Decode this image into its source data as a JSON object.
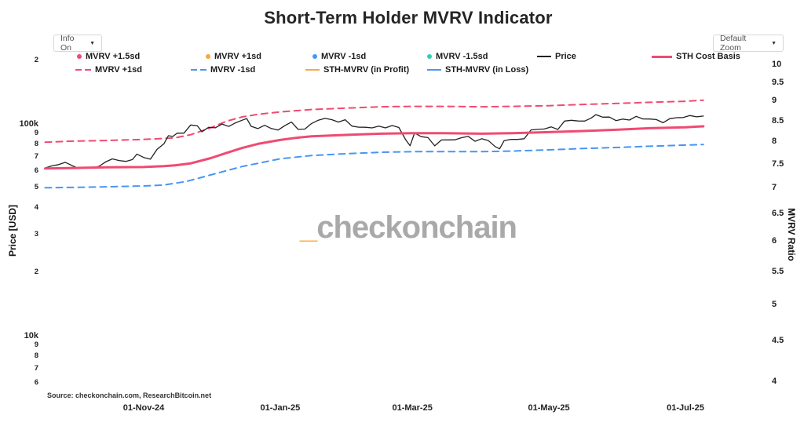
{
  "header": {
    "title": "Short-Term Holder MVRV Indicator"
  },
  "controls": {
    "info_dropdown": {
      "label": "Info On",
      "caret_icon": "chevron-down"
    },
    "zoom_dropdown": {
      "label": "Default Zoom",
      "caret_icon": "chevron-down"
    }
  },
  "colors": {
    "pink": "#f04a72",
    "blue": "#4796f5",
    "orange": "#f9a63f",
    "teal": "#2fd0b5",
    "black": "#212121",
    "watermark_gray": "#a9a9a9",
    "watermark_orange": "#fbaf3f"
  },
  "legend": {
    "rows": [
      [
        {
          "label": "MVRV +1.5sd",
          "marker": "dot",
          "color": "pink"
        },
        {
          "label": "MVRV +1sd",
          "marker": "dot",
          "color": "orange"
        },
        {
          "label": "MVRV -1sd",
          "marker": "dot",
          "color": "blue"
        },
        {
          "label": "MVRV -1.5sd",
          "marker": "dot",
          "color": "teal"
        },
        {
          "label": "Price",
          "marker": "line",
          "color": "black"
        },
        {
          "label": "STH Cost Basis",
          "marker": "thick",
          "color": "pink"
        }
      ],
      [
        {
          "label": "MVRV +1sd",
          "marker": "dashes",
          "color": "pink"
        },
        {
          "label": "MVRV -1sd",
          "marker": "dashes",
          "color": "blue"
        },
        {
          "label": "STH-MVRV (in Profit)",
          "marker": "line",
          "color": "orange"
        },
        {
          "label": "STH-MVRV (in Loss)",
          "marker": "line",
          "color": "blue"
        }
      ]
    ]
  },
  "watermark": {
    "underscore": "_",
    "text": "checkonchain"
  },
  "footer": {
    "source": "Source: checkonchain.com, ResearchBitcoin.net"
  },
  "chart_data": {
    "type": "line",
    "title": "Short-Term Holder MVRV Indicator",
    "units": "price in thousand USD (kUSD), log scales both axes, grid off, legend top horizontal",
    "x_axis": {
      "ticks": [
        {
          "date": "2024-11-01",
          "label": "01-Nov-24"
        },
        {
          "date": "2025-01-01",
          "label": "01-Jan-25"
        },
        {
          "date": "2025-03-01",
          "label": "01-Mar-25"
        },
        {
          "date": "2025-05-01",
          "label": "01-May-25"
        },
        {
          "date": "2025-07-01",
          "label": "01-Jul-25"
        }
      ],
      "range": [
        "2024-09-18",
        "2025-07-28"
      ]
    },
    "left_axis": {
      "label": "Price [USD]",
      "scale": "log",
      "ticks": [
        {
          "value": 200000,
          "label": "2",
          "major": false
        },
        {
          "value": 100000,
          "label": "100k",
          "major": true
        },
        {
          "value": 90000,
          "label": "9",
          "major": false
        },
        {
          "value": 80000,
          "label": "8",
          "major": false
        },
        {
          "value": 70000,
          "label": "7",
          "major": false
        },
        {
          "value": 60000,
          "label": "6",
          "major": false
        },
        {
          "value": 50000,
          "label": "5",
          "major": false
        },
        {
          "value": 40000,
          "label": "4",
          "major": false
        },
        {
          "value": 30000,
          "label": "3",
          "major": false
        },
        {
          "value": 20000,
          "label": "2",
          "major": false
        },
        {
          "value": 10000,
          "label": "10k",
          "major": true
        },
        {
          "value": 9000,
          "label": "9",
          "major": false
        },
        {
          "value": 8000,
          "label": "8",
          "major": false
        },
        {
          "value": 7000,
          "label": "7",
          "major": false
        },
        {
          "value": 6000,
          "label": "6",
          "major": false
        }
      ]
    },
    "right_axis": {
      "label": "MVRV Ratio",
      "scale": "log",
      "ticks": [
        {
          "value": 10,
          "label": "10"
        },
        {
          "value": 9.5,
          "label": "9.5"
        },
        {
          "value": 9,
          "label": "9"
        },
        {
          "value": 8.5,
          "label": "8.5"
        },
        {
          "value": 8,
          "label": "8"
        },
        {
          "value": 7.5,
          "label": "7.5"
        },
        {
          "value": 7,
          "label": "7"
        },
        {
          "value": 6.5,
          "label": "6.5"
        },
        {
          "value": 6,
          "label": "6"
        },
        {
          "value": 5.5,
          "label": "5.5"
        },
        {
          "value": 5,
          "label": "5"
        },
        {
          "value": 4.5,
          "label": "4.5"
        },
        {
          "value": 4,
          "label": "4"
        }
      ]
    },
    "series": [
      {
        "name": "MVRV +1sd",
        "color": "pink",
        "dash": true,
        "width": 2,
        "points": [
          [
            "2024-09-18",
            82.0
          ],
          [
            "2024-10-01",
            83.0
          ],
          [
            "2024-10-15",
            83.5
          ],
          [
            "2024-11-01",
            84.5
          ],
          [
            "2024-11-15",
            86.0
          ],
          [
            "2024-11-22",
            89.0
          ],
          [
            "2024-12-01",
            96.0
          ],
          [
            "2024-12-08",
            103.0
          ],
          [
            "2024-12-15",
            108.0
          ],
          [
            "2024-12-22",
            111.0
          ],
          [
            "2025-01-01",
            114.0
          ],
          [
            "2025-01-15",
            117.0
          ],
          [
            "2025-02-01",
            119.0
          ],
          [
            "2025-02-15",
            120.5
          ],
          [
            "2025-03-01",
            121.0
          ],
          [
            "2025-03-15",
            121.0
          ],
          [
            "2025-04-01",
            120.5
          ],
          [
            "2025-04-15",
            121.0
          ],
          [
            "2025-05-01",
            122.0
          ],
          [
            "2025-05-15",
            123.5
          ],
          [
            "2025-06-01",
            125.0
          ],
          [
            "2025-06-15",
            126.5
          ],
          [
            "2025-07-01",
            128.0
          ],
          [
            "2025-07-09",
            129.5
          ]
        ]
      },
      {
        "name": "MVRV -1sd",
        "color": "blue",
        "dash": true,
        "width": 2,
        "points": [
          [
            "2024-09-18",
            50.0
          ],
          [
            "2024-10-01",
            50.2
          ],
          [
            "2024-10-15",
            50.5
          ],
          [
            "2024-11-01",
            51.0
          ],
          [
            "2024-11-10",
            51.5
          ],
          [
            "2024-11-20",
            53.5
          ],
          [
            "2024-12-01",
            57.5
          ],
          [
            "2024-12-15",
            63.0
          ],
          [
            "2025-01-01",
            68.5
          ],
          [
            "2025-01-15",
            71.0
          ],
          [
            "2025-02-01",
            72.5
          ],
          [
            "2025-02-15",
            73.5
          ],
          [
            "2025-03-01",
            74.0
          ],
          [
            "2025-03-15",
            74.0
          ],
          [
            "2025-04-01",
            74.0
          ],
          [
            "2025-04-15",
            74.5
          ],
          [
            "2025-05-01",
            75.5
          ],
          [
            "2025-05-15",
            76.5
          ],
          [
            "2025-06-01",
            77.5
          ],
          [
            "2025-06-15",
            78.5
          ],
          [
            "2025-07-01",
            79.5
          ],
          [
            "2025-07-09",
            80.0
          ]
        ]
      },
      {
        "name": "Price",
        "color": "black",
        "dash": false,
        "width": 1.3,
        "points": [
          [
            "2024-09-18",
            62.0
          ],
          [
            "2024-09-21",
            63.4
          ],
          [
            "2024-09-24",
            64.3
          ],
          [
            "2024-09-27",
            65.9
          ],
          [
            "2024-09-30",
            63.6
          ],
          [
            "2024-10-03",
            61.7
          ],
          [
            "2024-10-06",
            62.4
          ],
          [
            "2024-10-09",
            62.2
          ],
          [
            "2024-10-12",
            63.1
          ],
          [
            "2024-10-15",
            66.2
          ],
          [
            "2024-10-18",
            68.4
          ],
          [
            "2024-10-21",
            67.2
          ],
          [
            "2024-10-24",
            66.6
          ],
          [
            "2024-10-27",
            67.9
          ],
          [
            "2024-10-29",
            72.1
          ],
          [
            "2024-11-01",
            69.5
          ],
          [
            "2024-11-04",
            68.2
          ],
          [
            "2024-11-07",
            75.9
          ],
          [
            "2024-11-10",
            80.5
          ],
          [
            "2024-11-12",
            88.0
          ],
          [
            "2024-11-14",
            87.3
          ],
          [
            "2024-11-16",
            90.6
          ],
          [
            "2024-11-19",
            90.5
          ],
          [
            "2024-11-22",
            98.9
          ],
          [
            "2024-11-25",
            98.0
          ],
          [
            "2024-11-27",
            91.9
          ],
          [
            "2024-11-30",
            96.4
          ],
          [
            "2024-12-03",
            95.9
          ],
          [
            "2024-12-06",
            99.9
          ],
          [
            "2024-12-09",
            97.3
          ],
          [
            "2024-12-12",
            101.2
          ],
          [
            "2024-12-15",
            104.2
          ],
          [
            "2024-12-17",
            106.1
          ],
          [
            "2024-12-19",
            97.5
          ],
          [
            "2024-12-22",
            95.1
          ],
          [
            "2024-12-25",
            98.6
          ],
          [
            "2024-12-28",
            95.2
          ],
          [
            "2024-12-31",
            93.6
          ],
          [
            "2025-01-03",
            98.1
          ],
          [
            "2025-01-06",
            102.1
          ],
          [
            "2025-01-09",
            94.3
          ],
          [
            "2025-01-12",
            94.6
          ],
          [
            "2025-01-15",
            100.5
          ],
          [
            "2025-01-18",
            104.2
          ],
          [
            "2025-01-21",
            106.2
          ],
          [
            "2025-01-24",
            104.8
          ],
          [
            "2025-01-27",
            102.1
          ],
          [
            "2025-01-30",
            104.7
          ],
          [
            "2025-02-02",
            97.7
          ],
          [
            "2025-02-05",
            96.6
          ],
          [
            "2025-02-08",
            96.5
          ],
          [
            "2025-02-11",
            95.8
          ],
          [
            "2025-02-14",
            97.6
          ],
          [
            "2025-02-17",
            95.8
          ],
          [
            "2025-02-20",
            98.3
          ],
          [
            "2025-02-23",
            96.2
          ],
          [
            "2025-02-26",
            84.3
          ],
          [
            "2025-02-28",
            78.9
          ],
          [
            "2025-03-02",
            90.6
          ],
          [
            "2025-03-05",
            87.1
          ],
          [
            "2025-03-08",
            86.2
          ],
          [
            "2025-03-11",
            78.8
          ],
          [
            "2025-03-14",
            84.0
          ],
          [
            "2025-03-17",
            84.1
          ],
          [
            "2025-03-20",
            84.2
          ],
          [
            "2025-03-23",
            86.1
          ],
          [
            "2025-03-26",
            87.4
          ],
          [
            "2025-03-29",
            82.8
          ],
          [
            "2025-04-01",
            85.2
          ],
          [
            "2025-04-04",
            83.4
          ],
          [
            "2025-04-07",
            78.2
          ],
          [
            "2025-04-09",
            76.3
          ],
          [
            "2025-04-11",
            83.3
          ],
          [
            "2025-04-14",
            84.6
          ],
          [
            "2025-04-17",
            84.5
          ],
          [
            "2025-04-20",
            85.2
          ],
          [
            "2025-04-23",
            93.7
          ],
          [
            "2025-04-26",
            94.3
          ],
          [
            "2025-04-29",
            94.7
          ],
          [
            "2025-05-02",
            96.9
          ],
          [
            "2025-05-05",
            94.2
          ],
          [
            "2025-05-08",
            103.2
          ],
          [
            "2025-05-11",
            104.1
          ],
          [
            "2025-05-14",
            103.3
          ],
          [
            "2025-05-17",
            103.2
          ],
          [
            "2025-05-20",
            106.8
          ],
          [
            "2025-05-22",
            110.7
          ],
          [
            "2025-05-25",
            107.7
          ],
          [
            "2025-05-28",
            107.8
          ],
          [
            "2025-05-31",
            103.7
          ],
          [
            "2025-06-03",
            105.4
          ],
          [
            "2025-06-06",
            104.4
          ],
          [
            "2025-06-09",
            108.6
          ],
          [
            "2025-06-12",
            105.6
          ],
          [
            "2025-06-15",
            105.5
          ],
          [
            "2025-06-18",
            104.9
          ],
          [
            "2025-06-21",
            101.4
          ],
          [
            "2025-06-24",
            105.9
          ],
          [
            "2025-06-27",
            107.1
          ],
          [
            "2025-06-30",
            107.2
          ],
          [
            "2025-07-03",
            109.6
          ],
          [
            "2025-07-06",
            108.1
          ],
          [
            "2025-07-09",
            109.0
          ]
        ]
      },
      {
        "name": "STH Cost Basis",
        "color": "pink",
        "dash": false,
        "width": 3,
        "points": [
          [
            "2024-09-18",
            61.6
          ],
          [
            "2024-10-01",
            62.0
          ],
          [
            "2024-10-15",
            62.4
          ],
          [
            "2024-11-01",
            62.6
          ],
          [
            "2024-11-10",
            63.2
          ],
          [
            "2024-11-15",
            63.8
          ],
          [
            "2024-11-22",
            65.2
          ],
          [
            "2024-12-01",
            69.0
          ],
          [
            "2024-12-08",
            73.0
          ],
          [
            "2024-12-15",
            77.0
          ],
          [
            "2024-12-22",
            80.5
          ],
          [
            "2025-01-01",
            84.0
          ],
          [
            "2025-01-08",
            86.0
          ],
          [
            "2025-01-15",
            87.5
          ],
          [
            "2025-02-01",
            89.0
          ],
          [
            "2025-02-15",
            90.0
          ],
          [
            "2025-03-01",
            90.5
          ],
          [
            "2025-03-15",
            90.5
          ],
          [
            "2025-04-01",
            90.0
          ],
          [
            "2025-04-15",
            90.5
          ],
          [
            "2025-05-01",
            91.5
          ],
          [
            "2025-05-15",
            92.5
          ],
          [
            "2025-06-01",
            94.0
          ],
          [
            "2025-06-15",
            95.5
          ],
          [
            "2025-07-01",
            96.5
          ],
          [
            "2025-07-09",
            97.5
          ]
        ]
      }
    ]
  }
}
